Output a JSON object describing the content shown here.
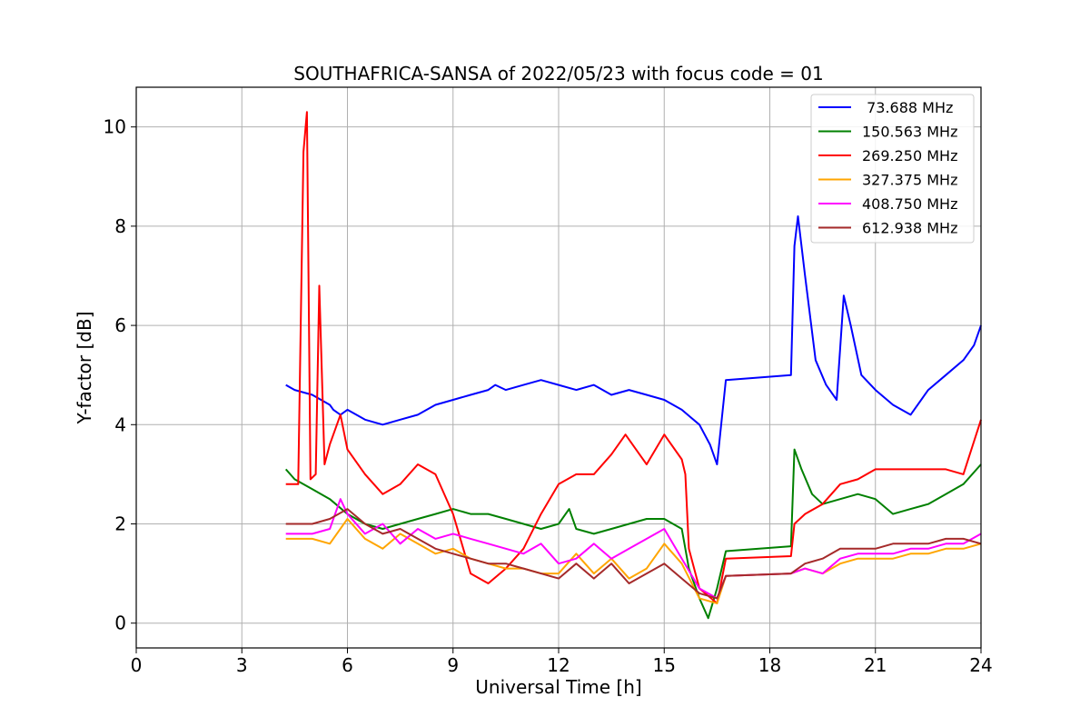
{
  "chart_data": {
    "type": "line",
    "title": "SOUTHAFRICA-SANSA of 2022/05/23 with focus code = 01",
    "xlabel": "Universal Time [h]",
    "ylabel": "Y-factor [dB]",
    "xlim": [
      0,
      24
    ],
    "ylim": [
      -0.5,
      10.8
    ],
    "xticks": [
      0,
      3,
      6,
      9,
      12,
      15,
      18,
      21,
      24
    ],
    "yticks": [
      0,
      2,
      4,
      6,
      8,
      10
    ],
    "grid": true,
    "legend_position": "top-right",
    "series": [
      {
        "name": " 73.688 MHz",
        "color": "#0000ff",
        "x": [
          4.25,
          4.5,
          5.0,
          5.5,
          5.6,
          5.8,
          6.0,
          6.5,
          7.0,
          7.5,
          8.0,
          8.5,
          9.0,
          9.5,
          10.0,
          10.2,
          10.5,
          11.0,
          11.5,
          12.0,
          12.5,
          13.0,
          13.5,
          14.0,
          14.5,
          15.0,
          15.5,
          16.0,
          16.3,
          16.5,
          16.75,
          18.6,
          18.7,
          18.8,
          19.0,
          19.3,
          19.6,
          19.9,
          20.1,
          20.3,
          20.6,
          21.0,
          21.5,
          22.0,
          22.5,
          23.0,
          23.5,
          23.8,
          24.0
        ],
        "y": [
          4.8,
          4.7,
          4.6,
          4.4,
          4.3,
          4.2,
          4.3,
          4.1,
          4.0,
          4.1,
          4.2,
          4.4,
          4.5,
          4.6,
          4.7,
          4.8,
          4.7,
          4.8,
          4.9,
          4.8,
          4.7,
          4.8,
          4.6,
          4.7,
          4.6,
          4.5,
          4.3,
          4.0,
          3.6,
          3.2,
          4.9,
          5.0,
          7.6,
          8.2,
          7.0,
          5.3,
          4.8,
          4.5,
          6.6,
          6.0,
          5.0,
          4.7,
          4.4,
          4.2,
          4.7,
          5.0,
          5.3,
          5.6,
          6.0
        ]
      },
      {
        "name": "150.563 MHz",
        "color": "#008000",
        "x": [
          4.25,
          4.5,
          5.0,
          5.5,
          6.0,
          6.5,
          7.0,
          7.5,
          8.0,
          8.5,
          9.0,
          9.5,
          10.0,
          10.5,
          11.0,
          11.5,
          12.0,
          12.3,
          12.5,
          13.0,
          13.5,
          14.0,
          14.5,
          15.0,
          15.5,
          15.7,
          16.0,
          16.25,
          16.5,
          16.75,
          18.6,
          18.7,
          18.9,
          19.2,
          19.5,
          20.0,
          20.5,
          21.0,
          21.5,
          22.0,
          22.5,
          23.0,
          23.5,
          24.0
        ],
        "y": [
          3.1,
          2.9,
          2.7,
          2.5,
          2.2,
          2.0,
          1.9,
          2.0,
          2.1,
          2.2,
          2.3,
          2.2,
          2.2,
          2.1,
          2.0,
          1.9,
          2.0,
          2.3,
          1.9,
          1.8,
          1.9,
          2.0,
          2.1,
          2.1,
          1.9,
          1.1,
          0.5,
          0.1,
          0.7,
          1.45,
          1.55,
          3.5,
          3.1,
          2.6,
          2.4,
          2.5,
          2.6,
          2.5,
          2.2,
          2.3,
          2.4,
          2.6,
          2.8,
          3.2
        ]
      },
      {
        "name": "269.250 MHz",
        "color": "#ff0000",
        "x": [
          4.25,
          4.6,
          4.75,
          4.85,
          4.95,
          5.1,
          5.2,
          5.35,
          5.5,
          5.8,
          6.0,
          6.5,
          7.0,
          7.5,
          8.0,
          8.5,
          9.0,
          9.5,
          10.0,
          10.5,
          11.0,
          11.5,
          12.0,
          12.5,
          13.0,
          13.5,
          13.9,
          14.3,
          14.5,
          15.0,
          15.5,
          15.6,
          15.7,
          16.0,
          16.5,
          16.75,
          18.6,
          18.7,
          19.0,
          19.5,
          20.0,
          20.5,
          21.0,
          21.5,
          22.0,
          22.5,
          23.0,
          23.5,
          24.0
        ],
        "y": [
          2.8,
          2.8,
          9.5,
          10.3,
          2.9,
          3.0,
          6.8,
          3.2,
          3.6,
          4.2,
          3.5,
          3.0,
          2.6,
          2.8,
          3.2,
          3.0,
          2.2,
          1.0,
          0.8,
          1.1,
          1.5,
          2.2,
          2.8,
          3.0,
          3.0,
          3.4,
          3.8,
          3.4,
          3.2,
          3.8,
          3.3,
          3.0,
          1.5,
          0.7,
          0.4,
          1.3,
          1.35,
          2.0,
          2.2,
          2.4,
          2.8,
          2.9,
          3.1,
          3.1,
          3.1,
          3.1,
          3.1,
          3.0,
          4.1
        ]
      },
      {
        "name": "327.375 MHz",
        "color": "#ffa500",
        "x": [
          4.25,
          4.5,
          5.0,
          5.5,
          6.0,
          6.5,
          7.0,
          7.5,
          8.0,
          8.5,
          9.0,
          9.5,
          10.0,
          10.5,
          11.0,
          11.5,
          12.0,
          12.5,
          13.0,
          13.5,
          14.0,
          14.5,
          15.0,
          15.5,
          16.0,
          16.5,
          16.75,
          18.6,
          19.0,
          19.5,
          20.0,
          20.5,
          21.0,
          21.5,
          22.0,
          22.5,
          23.0,
          23.5,
          24.0
        ],
        "y": [
          1.7,
          1.7,
          1.7,
          1.6,
          2.1,
          1.7,
          1.5,
          1.8,
          1.6,
          1.4,
          1.5,
          1.3,
          1.2,
          1.1,
          1.1,
          1.0,
          1.0,
          1.4,
          1.0,
          1.3,
          0.9,
          1.1,
          1.6,
          1.2,
          0.5,
          0.4,
          0.95,
          1.0,
          1.1,
          1.0,
          1.2,
          1.3,
          1.3,
          1.3,
          1.4,
          1.4,
          1.5,
          1.5,
          1.6
        ]
      },
      {
        "name": "408.750 MHz",
        "color": "#ff00ff",
        "x": [
          4.25,
          4.5,
          5.0,
          5.5,
          5.8,
          6.0,
          6.5,
          7.0,
          7.5,
          8.0,
          8.5,
          9.0,
          9.5,
          10.0,
          10.5,
          11.0,
          11.5,
          12.0,
          12.5,
          13.0,
          13.5,
          14.0,
          14.5,
          15.0,
          15.5,
          16.0,
          16.5,
          16.75,
          18.6,
          19.0,
          19.5,
          20.0,
          20.5,
          21.0,
          21.5,
          22.0,
          22.5,
          23.0,
          23.5,
          24.0
        ],
        "y": [
          1.8,
          1.8,
          1.8,
          1.9,
          2.5,
          2.2,
          1.8,
          2.0,
          1.6,
          1.9,
          1.7,
          1.8,
          1.7,
          1.6,
          1.5,
          1.4,
          1.6,
          1.2,
          1.3,
          1.6,
          1.3,
          1.5,
          1.7,
          1.9,
          1.3,
          0.7,
          0.5,
          0.95,
          1.0,
          1.1,
          1.0,
          1.3,
          1.4,
          1.4,
          1.4,
          1.5,
          1.5,
          1.6,
          1.6,
          1.8
        ]
      },
      {
        "name": "612.938 MHz",
        "color": "#a52a2a",
        "x": [
          4.25,
          4.5,
          5.0,
          5.5,
          6.0,
          6.5,
          7.0,
          7.5,
          8.0,
          8.5,
          9.0,
          9.5,
          10.0,
          10.5,
          11.0,
          11.5,
          12.0,
          12.5,
          13.0,
          13.5,
          14.0,
          14.5,
          15.0,
          15.5,
          16.0,
          16.5,
          16.75,
          18.6,
          19.0,
          19.5,
          20.0,
          20.5,
          21.0,
          21.5,
          22.0,
          22.5,
          23.0,
          23.5,
          24.0
        ],
        "y": [
          2.0,
          2.0,
          2.0,
          2.1,
          2.3,
          2.0,
          1.8,
          1.9,
          1.7,
          1.5,
          1.4,
          1.3,
          1.2,
          1.2,
          1.1,
          1.0,
          0.9,
          1.2,
          0.9,
          1.2,
          0.8,
          1.0,
          1.2,
          0.9,
          0.6,
          0.5,
          0.95,
          1.0,
          1.2,
          1.3,
          1.5,
          1.5,
          1.5,
          1.6,
          1.6,
          1.6,
          1.7,
          1.7,
          1.6
        ]
      }
    ]
  }
}
